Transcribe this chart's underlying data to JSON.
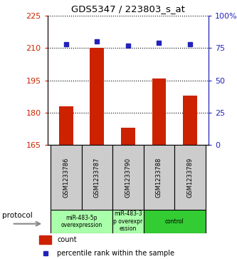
{
  "title": "GDS5347 / 223803_s_at",
  "samples": [
    "GSM1233786",
    "GSM1233787",
    "GSM1233790",
    "GSM1233788",
    "GSM1233789"
  ],
  "count_values": [
    183,
    210,
    173,
    196,
    188
  ],
  "percentile_values": [
    78,
    80,
    77,
    79,
    78
  ],
  "ylim_left": [
    165,
    225
  ],
  "ylim_right": [
    0,
    100
  ],
  "yticks_left": [
    165,
    180,
    195,
    210,
    225
  ],
  "yticks_right": [
    0,
    25,
    50,
    75,
    100
  ],
  "bar_color": "#cc2200",
  "dot_color": "#2222bb",
  "group_defs": [
    [
      0,
      1,
      "miR-483-5p\noverexpression",
      "#aaffaa"
    ],
    [
      2,
      2,
      "miR-483-3\np overexpr\nession",
      "#aaffaa"
    ],
    [
      3,
      4,
      "control",
      "#33cc33"
    ]
  ],
  "protocol_label": "protocol",
  "legend_count_label": "count",
  "legend_percentile_label": "percentile rank within the sample",
  "bar_color_legend": "#cc2200",
  "dot_color_legend": "#2222bb",
  "tick_color_left": "#cc2200",
  "tick_color_right": "#2222bb",
  "sample_box_color": "#cccccc",
  "hgrid_color": "black",
  "hgrid_style": "dotted",
  "hgrid_lw": 0.8
}
